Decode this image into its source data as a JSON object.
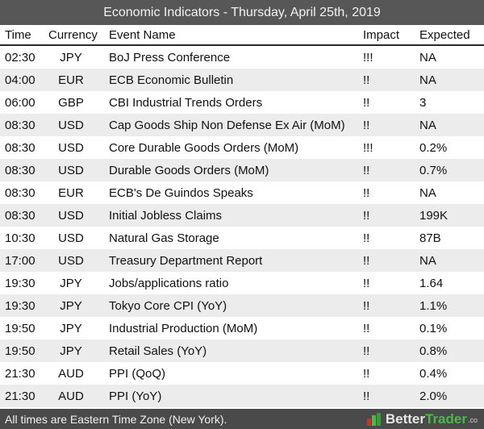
{
  "title": "Economic Indicators - Thursday, April 25th, 2019",
  "columns": {
    "time": "Time",
    "currency": "Currency",
    "event": "Event Name",
    "impact": "Impact",
    "expected": "Expected"
  },
  "rows": [
    {
      "time": "02:30",
      "currency": "JPY",
      "event": "BoJ Press Conference",
      "impact": "!!!",
      "expected": "NA"
    },
    {
      "time": "04:00",
      "currency": "EUR",
      "event": "ECB Economic Bulletin",
      "impact": "!!",
      "expected": "NA"
    },
    {
      "time": "06:00",
      "currency": "GBP",
      "event": "CBI Industrial Trends Orders",
      "impact": "!!",
      "expected": "3"
    },
    {
      "time": "08:30",
      "currency": "USD",
      "event": "Cap Goods Ship Non Defense Ex Air (MoM)",
      "impact": "!!",
      "expected": "NA"
    },
    {
      "time": "08:30",
      "currency": "USD",
      "event": "Core Durable Goods Orders (MoM)",
      "impact": "!!!",
      "expected": "0.2%"
    },
    {
      "time": "08:30",
      "currency": "USD",
      "event": "Durable Goods Orders (MoM)",
      "impact": "!!",
      "expected": "0.7%"
    },
    {
      "time": "08:30",
      "currency": "EUR",
      "event": "ECB's De Guindos Speaks",
      "impact": "!!",
      "expected": "NA"
    },
    {
      "time": "08:30",
      "currency": "USD",
      "event": "Initial Jobless Claims",
      "impact": "!!",
      "expected": "199K"
    },
    {
      "time": "10:30",
      "currency": "USD",
      "event": "Natural Gas Storage",
      "impact": "!!",
      "expected": "87B"
    },
    {
      "time": "17:00",
      "currency": "USD",
      "event": "Treasury Department Report",
      "impact": "!!",
      "expected": "NA"
    },
    {
      "time": "19:30",
      "currency": "JPY",
      "event": "Jobs/applications ratio",
      "impact": "!!",
      "expected": "1.64"
    },
    {
      "time": "19:30",
      "currency": "JPY",
      "event": "Tokyo Core CPI (YoY)",
      "impact": "!!",
      "expected": "1.1%"
    },
    {
      "time": "19:50",
      "currency": "JPY",
      "event": "Industrial Production (MoM)",
      "impact": "!!",
      "expected": "0.1%"
    },
    {
      "time": "19:50",
      "currency": "JPY",
      "event": "Retail Sales (YoY)",
      "impact": "!!",
      "expected": "0.8%"
    },
    {
      "time": "21:30",
      "currency": "AUD",
      "event": "PPI (QoQ)",
      "impact": "!!",
      "expected": "0.4%"
    },
    {
      "time": "21:30",
      "currency": "AUD",
      "event": "PPI (YoY)",
      "impact": "!!",
      "expected": "2.0%"
    }
  ],
  "footer": {
    "note": "All times are Eastern Time Zone (New York).",
    "brand": {
      "part1": "Better",
      "part2": "Trader",
      "part3": ".co"
    }
  },
  "colors": {
    "title_bar": "#575757",
    "footer_bar": "#4a4a4a",
    "row_alt": "#ececec",
    "brand_green": "#4db848"
  },
  "icons": {
    "brand_logo": "bettertrader-logo-icon"
  }
}
